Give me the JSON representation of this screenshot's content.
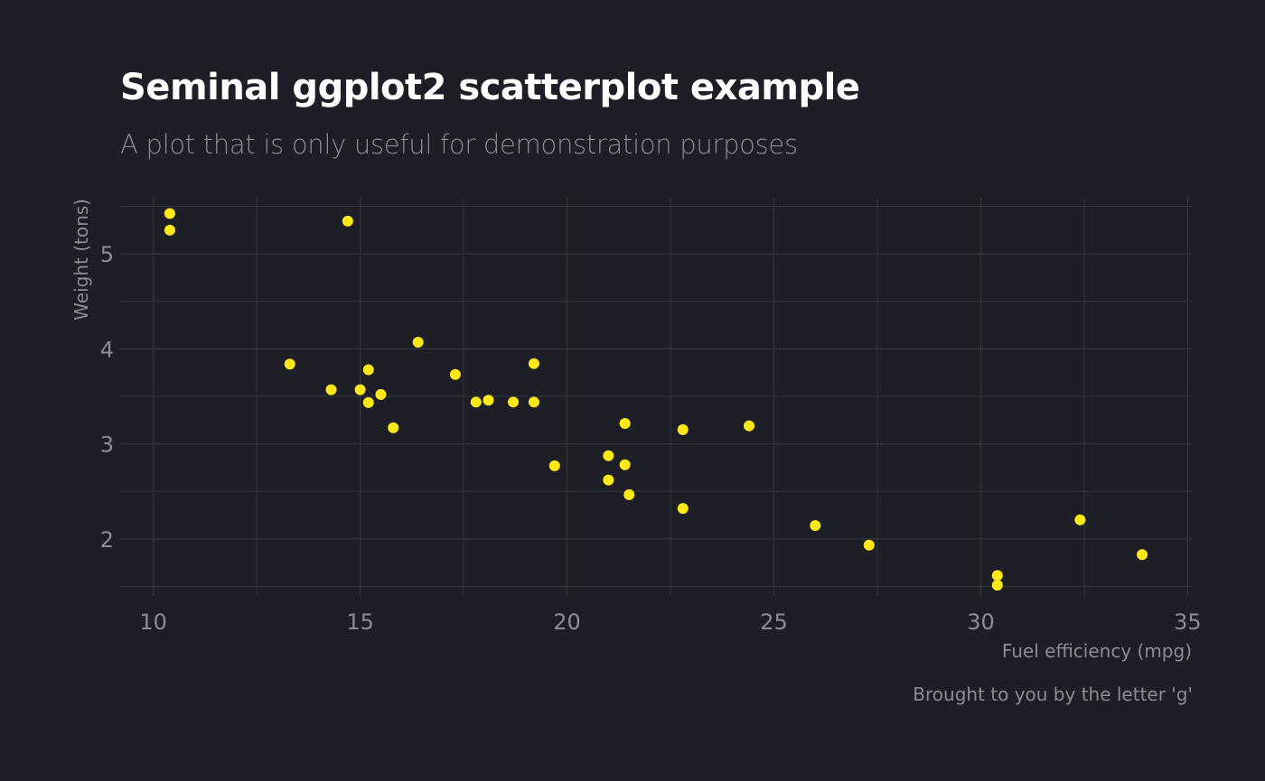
{
  "chart_data": {
    "type": "scatter",
    "title": "Seminal ggplot2 scatterplot example",
    "subtitle": "A plot that is only useful for demonstration purposes",
    "caption": "Brought to you by the letter 'g'",
    "xlabel": "Fuel efficiency (mpg)",
    "ylabel": "Weight (tons)",
    "xlim": [
      9.2,
      35.1
    ],
    "ylim": [
      1.4,
      5.6
    ],
    "xticks": [
      10,
      15,
      20,
      25,
      30,
      35
    ],
    "yticks": [
      2,
      3,
      4,
      5
    ],
    "grid": true,
    "point_color": "#ffe81a",
    "background": "#1e1f26",
    "grid_color": "#33353d",
    "x": [
      21.0,
      21.0,
      22.8,
      21.4,
      18.7,
      18.1,
      14.3,
      24.4,
      22.8,
      19.2,
      17.8,
      16.4,
      17.3,
      15.2,
      10.4,
      10.4,
      14.7,
      32.4,
      30.4,
      33.9,
      21.5,
      15.5,
      15.2,
      13.3,
      19.2,
      27.3,
      26.0,
      30.4,
      15.8,
      19.7,
      15.0,
      21.4
    ],
    "y": [
      2.62,
      2.875,
      2.32,
      3.215,
      3.44,
      3.46,
      3.57,
      3.19,
      3.15,
      3.44,
      3.44,
      4.07,
      3.73,
      3.78,
      5.25,
      5.424,
      5.345,
      2.2,
      1.615,
      1.835,
      2.465,
      3.52,
      3.435,
      3.84,
      3.845,
      1.935,
      2.14,
      1.513,
      3.17,
      2.77,
      3.57,
      2.78
    ]
  }
}
